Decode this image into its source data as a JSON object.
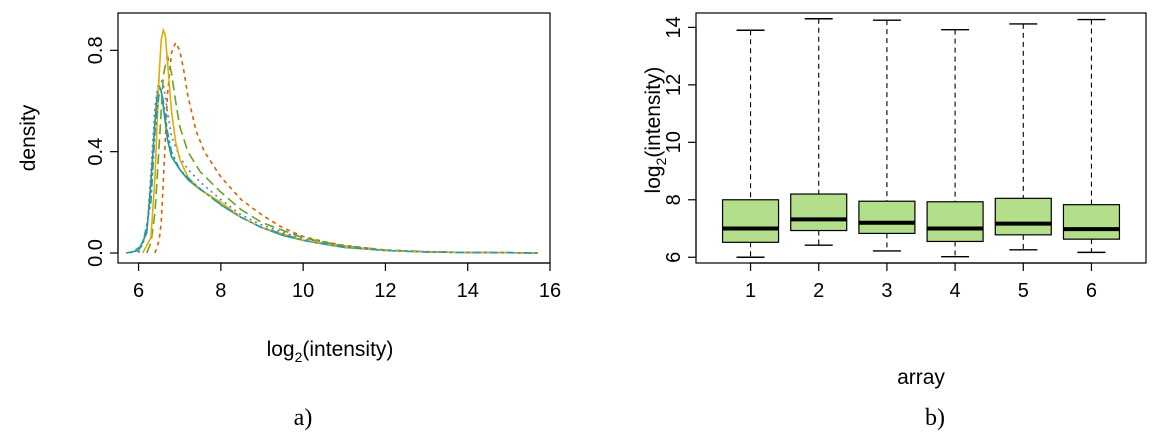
{
  "panels": {
    "a_label": "a)",
    "b_label": "b)"
  },
  "chart_data": [
    {
      "type": "line",
      "xlabel_main": "log",
      "xlabel_sub": "2",
      "xlabel_rest": "(intensity)",
      "ylabel": "density",
      "xlim": [
        5.5,
        16
      ],
      "ylim": [
        0,
        0.9
      ],
      "x_ticks": [
        6,
        8,
        10,
        12,
        14,
        16
      ],
      "x_tick_labels": [
        "6",
        "8",
        "10",
        "12",
        "14",
        "16"
      ],
      "y_ticks": [
        0.0,
        0.4,
        0.8
      ],
      "y_tick_labels": [
        "0.0",
        "0.4",
        "0.8"
      ],
      "grid": false,
      "series": [
        {
          "color": "#1b9e77",
          "dash": "solid",
          "x": [
            5.7,
            6.0,
            6.2,
            6.3,
            6.4,
            6.45,
            6.5,
            6.55,
            6.6,
            6.7,
            6.8,
            7.0,
            7.2,
            7.5,
            7.8,
            8.0,
            8.5,
            9.0,
            9.5,
            10.0,
            10.5,
            11.0,
            12.0,
            13.0,
            14.0,
            15.0,
            15.7
          ],
          "y": [
            0,
            0.01,
            0.08,
            0.28,
            0.52,
            0.62,
            0.66,
            0.64,
            0.58,
            0.45,
            0.38,
            0.33,
            0.29,
            0.25,
            0.22,
            0.19,
            0.14,
            0.1,
            0.07,
            0.05,
            0.035,
            0.022,
            0.01,
            0.004,
            0.002,
            0.001,
            0
          ]
        },
        {
          "color": "#d95f02",
          "dash": "4,4",
          "x": [
            6.4,
            6.5,
            6.55,
            6.6,
            6.7,
            6.8,
            6.9,
            7.0,
            7.1,
            7.2,
            7.4,
            7.6,
            7.8,
            8.0,
            8.5,
            9.0,
            9.5,
            10.0,
            10.5,
            11.0,
            12.0,
            13.0,
            14.0,
            15.0,
            15.7
          ],
          "y": [
            0,
            0.05,
            0.12,
            0.28,
            0.62,
            0.79,
            0.83,
            0.8,
            0.72,
            0.62,
            0.48,
            0.4,
            0.35,
            0.3,
            0.21,
            0.15,
            0.1,
            0.065,
            0.045,
            0.03,
            0.012,
            0.005,
            0.002,
            0.001,
            0
          ]
        },
        {
          "color": "#7570b3",
          "dash": "2,4",
          "x": [
            6.0,
            6.2,
            6.3,
            6.4,
            6.5,
            6.6,
            6.7,
            6.8,
            7.0,
            7.2,
            7.5,
            8.0,
            8.5,
            9.0,
            10.0,
            11.0,
            12.0,
            13.0,
            14.0,
            15.0,
            15.7
          ],
          "y": [
            0,
            0.08,
            0.32,
            0.58,
            0.69,
            0.67,
            0.56,
            0.46,
            0.38,
            0.33,
            0.28,
            0.21,
            0.15,
            0.11,
            0.055,
            0.025,
            0.01,
            0.004,
            0.002,
            0.001,
            0
          ]
        },
        {
          "color": "#66a61e",
          "dash": "10,5",
          "x": [
            6.2,
            6.3,
            6.4,
            6.5,
            6.6,
            6.7,
            6.8,
            6.9,
            7.0,
            7.2,
            7.5,
            8.0,
            8.5,
            9.0,
            10.0,
            11.0,
            12.0,
            13.0,
            14.0,
            15.0,
            15.7
          ],
          "y": [
            0,
            0.04,
            0.16,
            0.42,
            0.7,
            0.78,
            0.71,
            0.6,
            0.5,
            0.4,
            0.32,
            0.24,
            0.17,
            0.12,
            0.06,
            0.028,
            0.012,
            0.005,
            0.002,
            0.001,
            0
          ]
        },
        {
          "color": "#e6ab02",
          "dash": "solid",
          "x": [
            6.1,
            6.3,
            6.4,
            6.5,
            6.55,
            6.6,
            6.65,
            6.7,
            6.8,
            6.9,
            7.0,
            7.2,
            7.5,
            8.0,
            8.5,
            9.0,
            10.0,
            11.0,
            12.0,
            13.0,
            14.0,
            15.0,
            15.7
          ],
          "y": [
            0,
            0.06,
            0.3,
            0.7,
            0.84,
            0.88,
            0.86,
            0.76,
            0.56,
            0.44,
            0.37,
            0.3,
            0.25,
            0.2,
            0.14,
            0.1,
            0.05,
            0.024,
            0.01,
            0.004,
            0.002,
            0.001,
            0
          ]
        },
        {
          "color": "#1f9bb5",
          "dash": "3,3,8,3",
          "x": [
            5.8,
            6.1,
            6.3,
            6.4,
            6.5,
            6.55,
            6.6,
            6.7,
            6.8,
            7.0,
            7.3,
            7.6,
            8.0,
            8.5,
            9.0,
            10.0,
            11.0,
            12.0,
            13.0,
            14.0,
            15.0,
            15.7
          ],
          "y": [
            0,
            0.03,
            0.2,
            0.48,
            0.63,
            0.64,
            0.6,
            0.48,
            0.4,
            0.33,
            0.28,
            0.24,
            0.19,
            0.14,
            0.1,
            0.05,
            0.024,
            0.01,
            0.004,
            0.002,
            0.001,
            0
          ]
        }
      ]
    },
    {
      "type": "box",
      "xlabel": "array",
      "ylabel_main": "log",
      "ylabel_sub": "2",
      "ylabel_rest": "(intensity)",
      "ylim": [
        5.8,
        14.5
      ],
      "y_ticks": [
        6,
        8,
        10,
        12,
        14
      ],
      "y_tick_labels": [
        "6",
        "8",
        "10",
        "12",
        "14"
      ],
      "categories": [
        "1",
        "2",
        "3",
        "4",
        "5",
        "6"
      ],
      "box_color": "#b3df8a",
      "boxes": [
        {
          "min": 6.0,
          "q1": 6.52,
          "median": 7.0,
          "q3": 8.0,
          "max": 13.9
        },
        {
          "min": 6.42,
          "q1": 6.93,
          "median": 7.32,
          "q3": 8.2,
          "max": 14.3
        },
        {
          "min": 6.22,
          "q1": 6.83,
          "median": 7.2,
          "q3": 7.95,
          "max": 14.25
        },
        {
          "min": 6.02,
          "q1": 6.55,
          "median": 7.0,
          "q3": 7.93,
          "max": 13.92
        },
        {
          "min": 6.26,
          "q1": 6.78,
          "median": 7.17,
          "q3": 8.05,
          "max": 14.12
        },
        {
          "min": 6.17,
          "q1": 6.63,
          "median": 6.98,
          "q3": 7.83,
          "max": 14.27
        }
      ]
    }
  ]
}
